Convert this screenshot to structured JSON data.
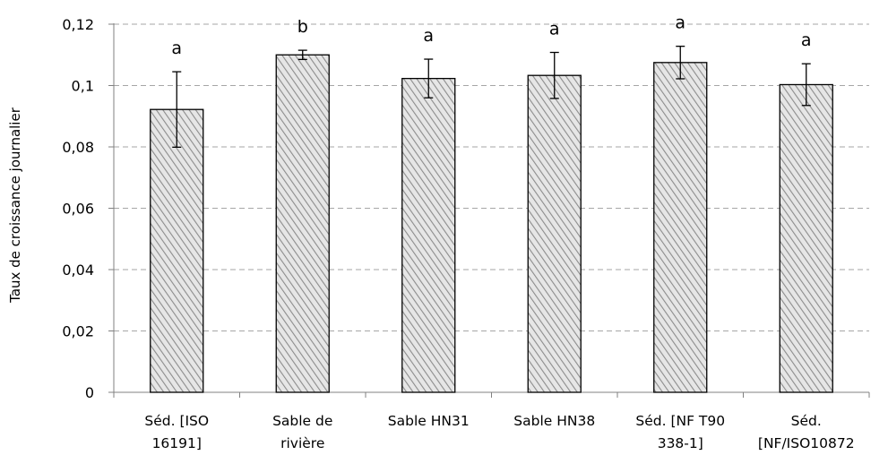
{
  "chart_data": {
    "type": "bar",
    "title": "",
    "xlabel": "",
    "ylabel": "Taux de croissance journalier",
    "ylim": [
      0,
      0.12
    ],
    "yticks": [
      0,
      0.02,
      0.04,
      0.06,
      0.08,
      0.1,
      0.12
    ],
    "ytick_labels": [
      "0",
      "0,02",
      "0,04",
      "0,06",
      "0,08",
      "0,1",
      "0,12"
    ],
    "grid": "horizontal dashed",
    "categories": [
      [
        "Séd. [ISO",
        "16191]"
      ],
      [
        "Sable de",
        "rivière"
      ],
      [
        "Sable HN31"
      ],
      [
        "Sable HN38"
      ],
      [
        "Séd. [NF T90",
        "338-1]"
      ],
      [
        "Séd.",
        "[NF/ISO10872"
      ]
    ],
    "values": [
      0.0922,
      0.11,
      0.1023,
      0.1033,
      0.1075,
      0.1003
    ],
    "error": [
      0.0123,
      0.0015,
      0.0063,
      0.0075,
      0.0053,
      0.0068
    ],
    "significance_letters": [
      "a",
      "b",
      "a",
      "a",
      "a",
      "a"
    ],
    "bar_fill": "hatched gray",
    "colors": {
      "bar_stroke": "#000000",
      "hatch": "#8c8c8c",
      "grid": "#a6a6a6",
      "axis": "#808080"
    }
  }
}
